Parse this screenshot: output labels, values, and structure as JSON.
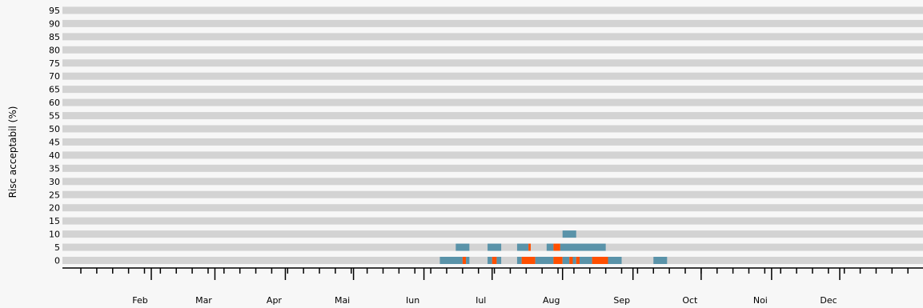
{
  "chart_data": {
    "type": "heatmap",
    "ylabel": "Risc acceptabil (%)",
    "y_levels": [
      0,
      5,
      10,
      15,
      20,
      25,
      30,
      35,
      40,
      45,
      50,
      55,
      60,
      65,
      70,
      75,
      80,
      85,
      90,
      95
    ],
    "x_month_labels": [
      "Feb",
      "Mar",
      "Apr",
      "Mai",
      "Iun",
      "Iul",
      "Aug",
      "Sep",
      "Oct",
      "Noi",
      "Dec"
    ],
    "x_range_days": [
      0,
      365
    ],
    "colors": {
      "background_band": "#d3d3d3",
      "teal": "#5a93a9",
      "orange": "#ff4f00",
      "page": "#f7f7f7"
    },
    "segments": [
      {
        "level": 0,
        "start": 158,
        "end": 168,
        "color": "teal"
      },
      {
        "level": 0,
        "start": 168,
        "end": 169.5,
        "color": "orange"
      },
      {
        "level": 0,
        "start": 169.5,
        "end": 171,
        "color": "teal"
      },
      {
        "level": 0,
        "start": 179,
        "end": 181,
        "color": "teal"
      },
      {
        "level": 0,
        "start": 181,
        "end": 183,
        "color": "orange"
      },
      {
        "level": 0,
        "start": 183,
        "end": 185,
        "color": "teal"
      },
      {
        "level": 0,
        "start": 192,
        "end": 194,
        "color": "teal"
      },
      {
        "level": 0,
        "start": 194,
        "end": 200,
        "color": "orange"
      },
      {
        "level": 0,
        "start": 200,
        "end": 208,
        "color": "teal"
      },
      {
        "level": 0,
        "start": 208,
        "end": 212,
        "color": "orange"
      },
      {
        "level": 0,
        "start": 212,
        "end": 215,
        "color": "teal"
      },
      {
        "level": 0,
        "start": 215,
        "end": 216.5,
        "color": "orange"
      },
      {
        "level": 0,
        "start": 216.5,
        "end": 218,
        "color": "teal"
      },
      {
        "level": 0,
        "start": 218,
        "end": 219.5,
        "color": "orange"
      },
      {
        "level": 0,
        "start": 219.5,
        "end": 225,
        "color": "teal"
      },
      {
        "level": 0,
        "start": 225,
        "end": 232,
        "color": "orange"
      },
      {
        "level": 0,
        "start": 232,
        "end": 238,
        "color": "teal"
      },
      {
        "level": 0,
        "start": 252,
        "end": 258,
        "color": "teal"
      },
      {
        "level": 5,
        "start": 165,
        "end": 171,
        "color": "teal"
      },
      {
        "level": 5,
        "start": 179,
        "end": 185,
        "color": "teal"
      },
      {
        "level": 5,
        "start": 192,
        "end": 197,
        "color": "teal"
      },
      {
        "level": 5,
        "start": 197,
        "end": 198,
        "color": "orange"
      },
      {
        "level": 5,
        "start": 205,
        "end": 208,
        "color": "teal"
      },
      {
        "level": 5,
        "start": 208,
        "end": 211,
        "color": "orange"
      },
      {
        "level": 5,
        "start": 211,
        "end": 231,
        "color": "teal"
      },
      {
        "level": 10,
        "start": 212,
        "end": 218,
        "color": "teal"
      }
    ]
  }
}
